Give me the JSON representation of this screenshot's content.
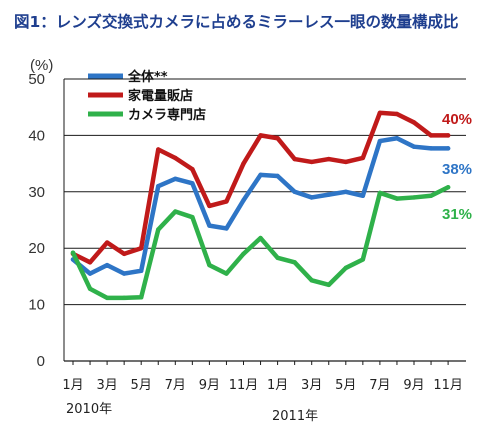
{
  "chart_data": {
    "type": "line",
    "title": "図1：レンズ交換式カメラに占めるミラーレス一眼の数量構成比",
    "ylabel": "(%)",
    "ylim": [
      0,
      50
    ],
    "yticks": [
      0,
      10,
      20,
      30,
      40,
      50
    ],
    "grid": true,
    "legend_position": "top-left",
    "x_tick_labels": [
      "1月",
      "3月",
      "5月",
      "7月",
      "9月",
      "11月",
      "1月",
      "3月",
      "5月",
      "7月",
      "9月",
      "11月"
    ],
    "year_labels": [
      "2010年",
      "2011年"
    ],
    "x": [
      "2010-01",
      "2010-02",
      "2010-03",
      "2010-04",
      "2010-05",
      "2010-06",
      "2010-07",
      "2010-08",
      "2010-09",
      "2010-10",
      "2010-11",
      "2010-12",
      "2011-01",
      "2011-02",
      "2011-03",
      "2011-04",
      "2011-05",
      "2011-06",
      "2011-07",
      "2011-08",
      "2011-09",
      "2011-10",
      "2011-11"
    ],
    "series": [
      {
        "name": "全体**",
        "color": "#2e75c6",
        "values": [
          18,
          15.5,
          17,
          15.5,
          16,
          31,
          32.3,
          31.5,
          24,
          23.5,
          28.5,
          33,
          32.8,
          30,
          29,
          29.5,
          30,
          29.3,
          39,
          39.5,
          38,
          37.7,
          37.7
        ],
        "end_label": "38%"
      },
      {
        "name": "家電量販店",
        "color": "#c01a1a",
        "values": [
          19,
          17.5,
          21,
          19,
          20,
          37.5,
          36,
          34,
          27.5,
          28.3,
          35,
          40,
          39.5,
          35.8,
          35.3,
          35.8,
          35.3,
          36,
          44,
          43.8,
          42.3,
          40,
          40
        ],
        "end_label": "40%"
      },
      {
        "name": "カメラ専門店",
        "color": "#2fb14a",
        "values": [
          19.2,
          12.8,
          11.2,
          11.2,
          11.3,
          23.3,
          26.5,
          25.5,
          17,
          15.5,
          19,
          21.8,
          18.3,
          17.5,
          14.3,
          13.5,
          16.5,
          18,
          29.8,
          28.8,
          29,
          29.3,
          30.8
        ],
        "end_label": "31%"
      }
    ]
  }
}
